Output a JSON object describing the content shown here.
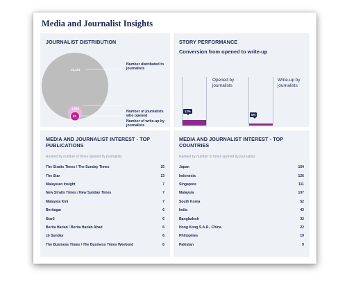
{
  "title": "Media and Journalist Insights",
  "distribution": {
    "heading": "JOURNALIST DISTRIBUTION",
    "distributed_value": "16,191",
    "opened_value": "1,953",
    "writeup_value": "91",
    "distributed_label": "Number distributed to journalists",
    "opened_label": "Number of journalists who opened",
    "writeup_label": "Number of write-up by journalists",
    "colors": {
      "distributed": "#bdbdbd",
      "opened": "#e0b5d9",
      "writeup": "#c7208f"
    }
  },
  "story": {
    "heading": "STORY PERFORMANCE",
    "subheading": "Conversion from opened to write-up",
    "opened_label": "Opened by journalists",
    "writeup_label": "Write-up by journalists",
    "opened_pct": "12%",
    "writeup_pct": "5%",
    "opened_fill": 0.12,
    "writeup_fill": 0.05
  },
  "publications": {
    "heading": "MEDIA AND JOURNALIST INTEREST - TOP PUBLICATIONS",
    "note": "Ranked by number of times opened by journalists",
    "rows": [
      {
        "name": "The Straits Times / The Sunday Times",
        "count": "15"
      },
      {
        "name": "The Star",
        "count": "13"
      },
      {
        "name": "Malaysian Insight",
        "count": "7"
      },
      {
        "name": "New Straits Times / New Sunday Times",
        "count": "7"
      },
      {
        "name": "Malaysia Kini",
        "count": "7"
      },
      {
        "name": "Beritagar",
        "count": "6"
      },
      {
        "name": "Star2",
        "count": "6"
      },
      {
        "name": "Berita Harian / Berita Harian Ahad",
        "count": "6"
      },
      {
        "name": "zb Sunday",
        "count": "6"
      },
      {
        "name": "The Business Times / The Business Times Weekend",
        "count": "6"
      }
    ]
  },
  "countries": {
    "heading": "MEDIA AND JOURNALIST INTEREST - TOP COUNTRIES",
    "note": "Ranked by number of times opened by journalists",
    "rows": [
      {
        "name": "Japan",
        "count": "154"
      },
      {
        "name": "Indonesia",
        "count": "126"
      },
      {
        "name": "Singapore",
        "count": "111"
      },
      {
        "name": "Malaysia",
        "count": "107"
      },
      {
        "name": "South Korea",
        "count": "52"
      },
      {
        "name": "India",
        "count": "43"
      },
      {
        "name": "Bangladesh",
        "count": "32"
      },
      {
        "name": "Hong Kong S.A.R., China",
        "count": "22"
      },
      {
        "name": "Philippines",
        "count": "19"
      },
      {
        "name": "Pakistan",
        "count": "9"
      }
    ]
  }
}
